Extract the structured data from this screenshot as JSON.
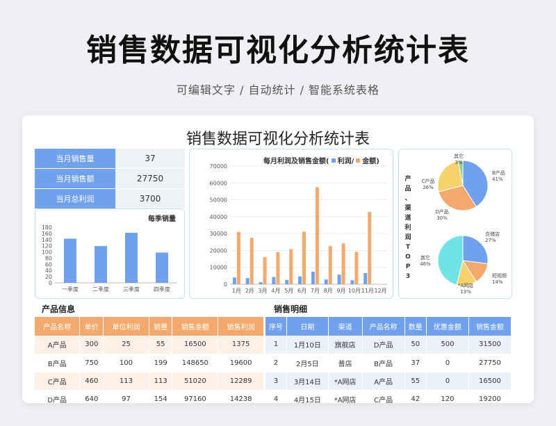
{
  "banner": {
    "title": "销售数据可视化分析统计表",
    "subtitle": "可编辑文字 / 自动统计 / 智能系统表格"
  },
  "sheet_title": "销售数据可视化分析统计表",
  "kpis": [
    {
      "label": "当月销售量",
      "value": "37"
    },
    {
      "label": "当月销售额",
      "value": "27750"
    },
    {
      "label": "当月总利润",
      "value": "3700"
    }
  ],
  "colors": {
    "blue": "#6fa1ec",
    "orange": "#f3a96b",
    "yellow": "#f7d26a",
    "cyan": "#6fe3e8",
    "green": "#8ed08e"
  },
  "chart_data": [
    {
      "type": "bar",
      "title": "每季销量",
      "categories": [
        "一季度",
        "二季度",
        "三季度",
        "四季度"
      ],
      "values": [
        143,
        119,
        162,
        98
      ],
      "ylim": [
        0,
        180
      ],
      "yticks": [
        0,
        20,
        40,
        60,
        80,
        100,
        120,
        140,
        160,
        180
      ],
      "grid": false
    },
    {
      "type": "bar",
      "title": "每月利润及销售金额(",
      "categories": [
        "1月",
        "2月",
        "3月",
        "4月",
        "5月",
        "6月",
        "7月",
        "8月",
        "9月",
        "10月",
        "11月",
        "12月"
      ],
      "series": [
        {
          "name": "利润/",
          "values": [
            4000,
            3600,
            1200,
            4300,
            2500,
            4600,
            7400,
            2800,
            5700,
            2400,
            6600,
            0
          ]
        },
        {
          "name": "金额)",
          "values": [
            31000,
            27500,
            16000,
            19000,
            20800,
            31200,
            57500,
            22600,
            24200,
            19200,
            42800,
            0
          ]
        }
      ],
      "ylim": [
        0,
        70000
      ],
      "yticks": [
        0,
        10000,
        20000,
        30000,
        40000,
        50000,
        60000,
        70000
      ],
      "legend": "top"
    },
    {
      "type": "pie",
      "slices": [
        {
          "label": "B产品",
          "pct": "41%",
          "value": 41
        },
        {
          "label": "D产品",
          "pct": "30%",
          "value": 30
        },
        {
          "label": "C产品",
          "pct": "26%",
          "value": 26
        },
        {
          "label": "其它",
          "pct": "3%",
          "value": 3
        }
      ]
    },
    {
      "type": "pie",
      "slices": [
        {
          "label": "合储店",
          "pct": "27%",
          "value": 27
        },
        {
          "label": "短视频",
          "pct": "14%",
          "value": 14
        },
        {
          "label": "*A网店",
          "pct": "13%",
          "value": 13
        },
        {
          "label": "其它",
          "pct": "46%",
          "value": 46
        }
      ]
    }
  ],
  "pie_side_label": "产品、渠道利润TOP3",
  "product_info": {
    "heading": "产品信息",
    "headers": [
      "产品名称",
      "单价",
      "单位利润",
      "销量",
      "销售金额",
      "销售利润"
    ],
    "rows": [
      [
        "A产品",
        "300",
        "25",
        "55",
        "16500",
        "1375"
      ],
      [
        "B产品",
        "750",
        "100",
        "199",
        "148650",
        "19600"
      ],
      [
        "C产品",
        "460",
        "113",
        "113",
        "51020",
        "12289"
      ],
      [
        "D产品",
        "640",
        "97",
        "154",
        "97160",
        "14238"
      ]
    ]
  },
  "sales_detail": {
    "heading": "销售明细",
    "headers": [
      "序号",
      "日期",
      "渠道",
      "产品名称",
      "数量",
      "优惠金额",
      "销售金额"
    ],
    "rows": [
      [
        "1",
        "1月10日",
        "旗舰店",
        "D产品",
        "50",
        "500",
        "31500"
      ],
      [
        "2",
        "2月5日",
        "普店",
        "B产品",
        "37",
        "0",
        "27750"
      ],
      [
        "3",
        "3月14日",
        "*A网店",
        "A产品",
        "55",
        "0",
        "16500"
      ],
      [
        "4",
        "4月15日",
        "*A网店",
        "C产品",
        "42",
        "120",
        "19200"
      ]
    ]
  }
}
